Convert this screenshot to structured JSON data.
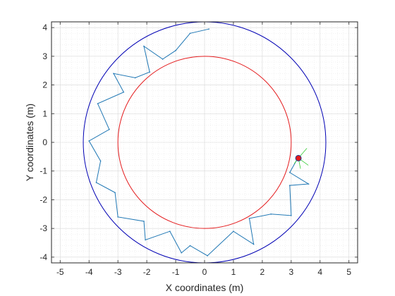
{
  "chart_data": {
    "type": "line",
    "xlabel": "X coordinates (m)",
    "ylabel": "Y coordinates (m)",
    "xlim": [
      -5.3,
      5.3
    ],
    "ylim": [
      -4.2,
      4.2
    ],
    "xticks": [
      -5,
      -4,
      -3,
      -2,
      -1,
      0,
      1,
      2,
      3,
      4,
      5
    ],
    "yticks": [
      -4,
      -3,
      -2,
      -1,
      0,
      1,
      2,
      3,
      4
    ],
    "xtick_labels": [
      "-5",
      "-4",
      "-3",
      "-2",
      "-1",
      "0",
      "1",
      "2",
      "3",
      "4",
      "5"
    ],
    "ytick_labels": [
      "-4",
      "-3",
      "-2",
      "-1",
      "0",
      "1",
      "2",
      "3",
      "4"
    ],
    "grid": true,
    "minor_grid": true,
    "series": [
      {
        "kind": "circle",
        "center": [
          0,
          0
        ],
        "radius": 4.2,
        "color": "#0000b4"
      },
      {
        "kind": "circle",
        "center": [
          0,
          0
        ],
        "radius": 3.0,
        "color": "#e41a1c"
      },
      {
        "kind": "path",
        "color": "#1f77b4",
        "x": [
          0.15,
          -0.5,
          -1.0,
          -1.45,
          -2.1,
          -1.9,
          -2.4,
          -3.15,
          -2.8,
          -3.7,
          -3.3,
          -4.0,
          -3.6,
          -3.75,
          -3.1,
          -3.0,
          -2.1,
          -2.05,
          -1.2,
          -0.8,
          -0.5,
          0.1,
          1.0,
          1.7,
          1.55,
          2.3,
          3.0,
          2.95,
          3.6,
          2.95,
          3.2
        ],
        "y": [
          3.95,
          3.8,
          3.2,
          2.9,
          3.35,
          2.45,
          2.25,
          2.4,
          1.75,
          1.35,
          0.45,
          0.05,
          -0.65,
          -1.4,
          -1.75,
          -2.6,
          -2.75,
          -3.4,
          -3.1,
          -3.85,
          -3.6,
          -3.95,
          -3.1,
          -3.55,
          -2.65,
          -2.5,
          -2.55,
          -1.5,
          -1.45,
          -1.05,
          -0.6
        ]
      },
      {
        "kind": "robot",
        "x": 3.25,
        "y": -0.55,
        "color": "#e41a1c"
      }
    ]
  }
}
